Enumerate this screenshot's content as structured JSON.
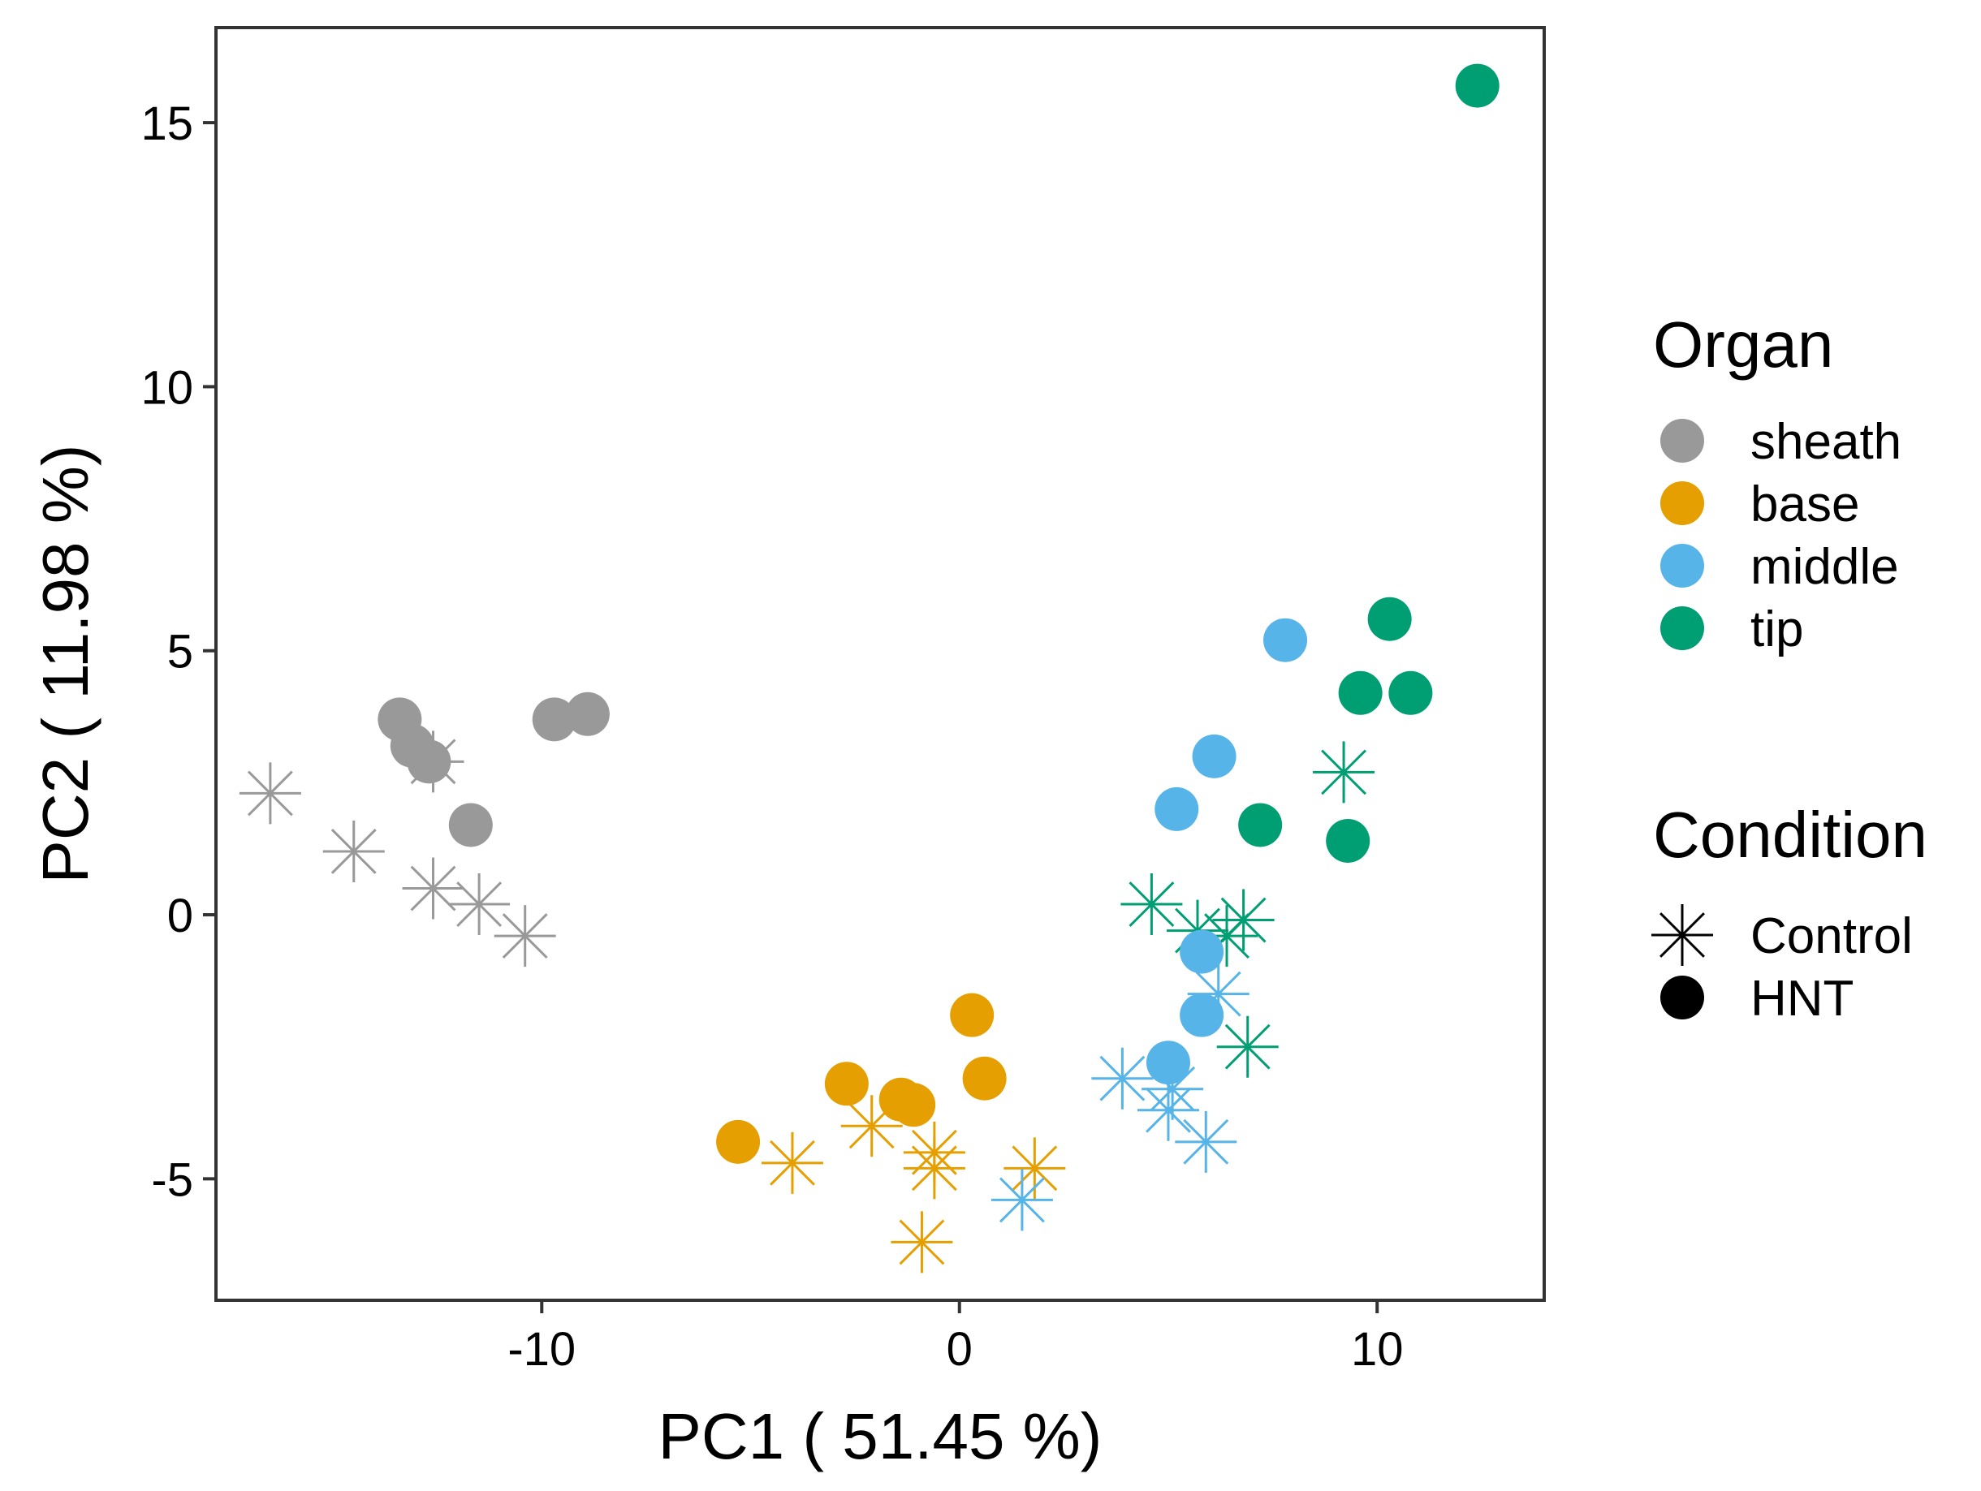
{
  "chart_data": {
    "type": "scatter",
    "xlabel": "PC1 ( 51.45 %)",
    "ylabel": "PC2 ( 11.98 %)",
    "xlim": [
      -17.8,
      14.0
    ],
    "ylim": [
      -7.3,
      16.8
    ],
    "x_ticks": [
      {
        "value": -10,
        "label": "-10"
      },
      {
        "value": 0,
        "label": "0"
      },
      {
        "value": 10,
        "label": "10"
      }
    ],
    "y_ticks": [
      {
        "value": -5,
        "label": "-5"
      },
      {
        "value": 0,
        "label": "0"
      },
      {
        "value": 5,
        "label": "5"
      },
      {
        "value": 10,
        "label": "10"
      },
      {
        "value": 15,
        "label": "15"
      }
    ],
    "grid": false,
    "legend_position": "right",
    "legends": {
      "organ": {
        "title": "Organ",
        "items": [
          {
            "key": "sheath",
            "label": "sheath",
            "color": "#999999"
          },
          {
            "key": "base",
            "label": "base",
            "color": "#E69F00"
          },
          {
            "key": "middle",
            "label": "middle",
            "color": "#56B4E9"
          },
          {
            "key": "tip",
            "label": "tip",
            "color": "#009E73"
          }
        ]
      },
      "condition": {
        "title": "Condition",
        "items": [
          {
            "key": "Control",
            "label": "Control",
            "shape": "asterisk"
          },
          {
            "key": "HNT",
            "label": "HNT",
            "shape": "circle"
          }
        ]
      }
    },
    "series": [
      {
        "organ": "sheath",
        "condition": "HNT",
        "points": [
          [
            -13.4,
            3.7
          ],
          [
            -13.1,
            3.2
          ],
          [
            -12.7,
            2.9
          ],
          [
            -11.7,
            1.7
          ],
          [
            -9.7,
            3.7
          ],
          [
            -8.9,
            3.8
          ]
        ]
      },
      {
        "organ": "sheath",
        "condition": "Control",
        "points": [
          [
            -16.5,
            2.3
          ],
          [
            -14.5,
            1.2
          ],
          [
            -12.6,
            2.9
          ],
          [
            -12.6,
            0.5
          ],
          [
            -11.5,
            0.2
          ],
          [
            -10.4,
            -0.4
          ]
        ]
      },
      {
        "organ": "base",
        "condition": "HNT",
        "points": [
          [
            -5.3,
            -4.3
          ],
          [
            -2.7,
            -3.2
          ],
          [
            -1.4,
            -3.5
          ],
          [
            -1.1,
            -3.6
          ],
          [
            0.3,
            -1.9
          ],
          [
            0.6,
            -3.1
          ]
        ]
      },
      {
        "organ": "base",
        "condition": "Control",
        "points": [
          [
            -4.0,
            -4.7
          ],
          [
            -2.1,
            -4.0
          ],
          [
            -0.9,
            -6.2
          ],
          [
            -0.6,
            -4.5
          ],
          [
            -0.6,
            -4.8
          ],
          [
            1.8,
            -4.8
          ]
        ]
      },
      {
        "organ": "middle",
        "condition": "HNT",
        "points": [
          [
            5.0,
            -2.8
          ],
          [
            5.2,
            2.0
          ],
          [
            5.8,
            -1.9
          ],
          [
            5.8,
            -0.7
          ],
          [
            6.1,
            3.0
          ],
          [
            7.8,
            5.2
          ]
        ]
      },
      {
        "organ": "middle",
        "condition": "Control",
        "points": [
          [
            1.5,
            -5.4
          ],
          [
            3.9,
            -3.1
          ],
          [
            5.0,
            -3.7
          ],
          [
            5.1,
            -3.3
          ],
          [
            5.9,
            -4.3
          ],
          [
            6.2,
            -1.5
          ]
        ]
      },
      {
        "organ": "tip",
        "condition": "HNT",
        "points": [
          [
            7.2,
            1.7
          ],
          [
            9.3,
            1.4
          ],
          [
            9.6,
            4.2
          ],
          [
            10.3,
            5.6
          ],
          [
            10.8,
            4.2
          ],
          [
            12.4,
            15.7
          ]
        ]
      },
      {
        "organ": "tip",
        "condition": "Control",
        "points": [
          [
            4.6,
            0.2
          ],
          [
            5.7,
            -0.3
          ],
          [
            6.4,
            -0.4
          ],
          [
            6.8,
            -0.1
          ],
          [
            6.9,
            -2.5
          ],
          [
            9.2,
            2.7
          ]
        ]
      }
    ]
  }
}
